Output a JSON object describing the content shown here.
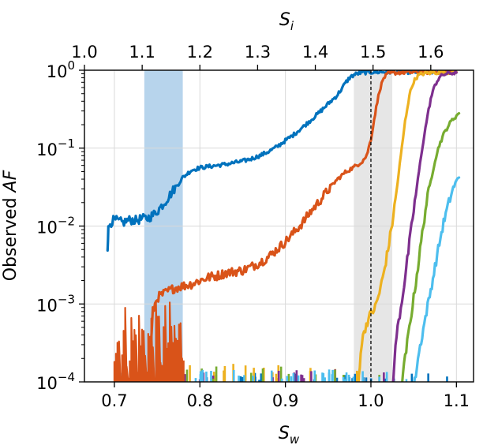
{
  "chart_data": {
    "type": "line",
    "xlabel": "S",
    "xlabel_sub": "w",
    "x2label": "S",
    "x2label_sub": "i",
    "ylabel_prefix": "Observed ",
    "ylabel_italic": "AF",
    "yscale": "log",
    "xlim": [
      0.665,
      1.12
    ],
    "ylim": [
      0.0001,
      1
    ],
    "x_ticks": [
      {
        "value": 0.7,
        "label": "0.7"
      },
      {
        "value": 0.8,
        "label": "0.8"
      },
      {
        "value": 0.9,
        "label": "0.9"
      },
      {
        "value": 1.0,
        "label": "1.0"
      },
      {
        "value": 1.1,
        "label": "1.1"
      }
    ],
    "top_ticks": [
      {
        "value": 0.665,
        "label": "1.0"
      },
      {
        "value": 0.7325,
        "label": "1.1"
      },
      {
        "value": 0.8,
        "label": "1.2"
      },
      {
        "value": 0.8675,
        "label": "1.3"
      },
      {
        "value": 0.935,
        "label": "1.4"
      },
      {
        "value": 1.0025,
        "label": "1.5"
      },
      {
        "value": 1.07,
        "label": "1.6"
      }
    ],
    "y_ticks": [
      {
        "value": 1,
        "base": "10",
        "exp": "0"
      },
      {
        "value": 0.1,
        "base": "10",
        "exp": "−1"
      },
      {
        "value": 0.01,
        "base": "10",
        "exp": "−2"
      },
      {
        "value": 0.001,
        "base": "10",
        "exp": "−3"
      },
      {
        "value": 0.0001,
        "base": "10",
        "exp": "−4"
      }
    ],
    "grid": true,
    "spans": [
      {
        "x0": 0.735,
        "x1": 0.78,
        "color": "#b7d4ec"
      },
      {
        "x0": 0.98,
        "x1": 1.025,
        "color": "#e6e6e6"
      }
    ],
    "vlines": [
      {
        "x": 1.0,
        "style": "dashed",
        "color": "#000000"
      }
    ],
    "series": [
      {
        "color": "#0072bd",
        "points": [
          [
            0.692,
            0.0055
          ],
          [
            0.693,
            0.009
          ],
          [
            0.695,
            0.011
          ],
          [
            0.7,
            0.012
          ],
          [
            0.705,
            0.0115
          ],
          [
            0.71,
            0.011
          ],
          [
            0.715,
            0.0118
          ],
          [
            0.72,
            0.012
          ],
          [
            0.725,
            0.0118
          ],
          [
            0.73,
            0.0122
          ],
          [
            0.735,
            0.0125
          ],
          [
            0.74,
            0.0128
          ],
          [
            0.745,
            0.0138
          ],
          [
            0.75,
            0.0155
          ],
          [
            0.755,
            0.018
          ],
          [
            0.76,
            0.021
          ],
          [
            0.765,
            0.025
          ],
          [
            0.77,
            0.03
          ],
          [
            0.775,
            0.035
          ],
          [
            0.78,
            0.042
          ],
          [
            0.79,
            0.052
          ],
          [
            0.8,
            0.056
          ],
          [
            0.81,
            0.058
          ],
          [
            0.82,
            0.06
          ],
          [
            0.83,
            0.062
          ],
          [
            0.84,
            0.065
          ],
          [
            0.85,
            0.068
          ],
          [
            0.86,
            0.073
          ],
          [
            0.87,
            0.08
          ],
          [
            0.88,
            0.09
          ],
          [
            0.89,
            0.104
          ],
          [
            0.9,
            0.125
          ],
          [
            0.91,
            0.15
          ],
          [
            0.92,
            0.185
          ],
          [
            0.93,
            0.23
          ],
          [
            0.94,
            0.29
          ],
          [
            0.95,
            0.37
          ],
          [
            0.96,
            0.47
          ],
          [
            0.965,
            0.56
          ],
          [
            0.97,
            0.68
          ],
          [
            0.975,
            0.8
          ],
          [
            0.98,
            0.87
          ],
          [
            0.985,
            0.91
          ],
          [
            0.99,
            0.93
          ],
          [
            1.0,
            0.945
          ],
          [
            1.02,
            0.95
          ],
          [
            1.04,
            0.95
          ],
          [
            1.06,
            0.95
          ],
          [
            1.08,
            0.95
          ],
          [
            1.1,
            0.95
          ]
        ]
      },
      {
        "color": "#d95319",
        "points": [
          [
            0.7,
            8e-05
          ],
          [
            0.74,
            8e-05
          ],
          [
            0.745,
            0.0008
          ],
          [
            0.75,
            0.0012
          ],
          [
            0.76,
            0.0014
          ],
          [
            0.77,
            0.0016
          ],
          [
            0.78,
            0.0017
          ],
          [
            0.79,
            0.0018
          ],
          [
            0.8,
            0.002
          ],
          [
            0.81,
            0.0022
          ],
          [
            0.82,
            0.0023
          ],
          [
            0.83,
            0.0025
          ],
          [
            0.84,
            0.0026
          ],
          [
            0.85,
            0.0027
          ],
          [
            0.86,
            0.003
          ],
          [
            0.87,
            0.0034
          ],
          [
            0.88,
            0.004
          ],
          [
            0.89,
            0.005
          ],
          [
            0.9,
            0.0063
          ],
          [
            0.91,
            0.0083
          ],
          [
            0.92,
            0.011
          ],
          [
            0.93,
            0.0155
          ],
          [
            0.94,
            0.021
          ],
          [
            0.95,
            0.029
          ],
          [
            0.96,
            0.039
          ],
          [
            0.97,
            0.049
          ],
          [
            0.98,
            0.057
          ],
          [
            0.985,
            0.062
          ],
          [
            0.99,
            0.068
          ],
          [
            0.995,
            0.08
          ],
          [
            1.0,
            0.13
          ],
          [
            1.005,
            0.28
          ],
          [
            1.01,
            0.55
          ],
          [
            1.015,
            0.8
          ],
          [
            1.02,
            0.9
          ],
          [
            1.03,
            0.93
          ],
          [
            1.04,
            0.94
          ],
          [
            1.06,
            0.945
          ],
          [
            1.08,
            0.95
          ],
          [
            1.1,
            0.95
          ]
        ]
      },
      {
        "color": "#edb120",
        "points": [
          [
            0.985,
            8e-05
          ],
          [
            0.988,
            0.00025
          ],
          [
            0.992,
            0.00045
          ],
          [
            0.996,
            0.0006
          ],
          [
            1.0,
            0.00075
          ],
          [
            1.005,
            0.0009
          ],
          [
            1.01,
            0.0014
          ],
          [
            1.015,
            0.0025
          ],
          [
            1.02,
            0.005
          ],
          [
            1.025,
            0.011
          ],
          [
            1.03,
            0.028
          ],
          [
            1.035,
            0.08
          ],
          [
            1.04,
            0.22
          ],
          [
            1.045,
            0.48
          ],
          [
            1.05,
            0.72
          ],
          [
            1.055,
            0.85
          ],
          [
            1.06,
            0.9
          ],
          [
            1.07,
            0.93
          ],
          [
            1.08,
            0.94
          ],
          [
            1.1,
            0.945
          ]
        ]
      },
      {
        "color": "#7e2f8e",
        "points": [
          [
            1.025,
            8e-05
          ],
          [
            1.03,
            0.0004
          ],
          [
            1.035,
            0.0009
          ],
          [
            1.04,
            0.0022
          ],
          [
            1.045,
            0.006
          ],
          [
            1.05,
            0.016
          ],
          [
            1.055,
            0.04
          ],
          [
            1.06,
            0.1
          ],
          [
            1.065,
            0.22
          ],
          [
            1.07,
            0.43
          ],
          [
            1.075,
            0.65
          ],
          [
            1.08,
            0.81
          ],
          [
            1.085,
            0.88
          ],
          [
            1.09,
            0.91
          ],
          [
            1.1,
            0.93
          ]
        ]
      },
      {
        "color": "#77ac30",
        "points": [
          [
            1.035,
            8e-05
          ],
          [
            1.04,
            0.0002
          ],
          [
            1.045,
            0.0005
          ],
          [
            1.05,
            0.0012
          ],
          [
            1.055,
            0.003
          ],
          [
            1.06,
            0.008
          ],
          [
            1.065,
            0.02
          ],
          [
            1.07,
            0.038
          ],
          [
            1.075,
            0.07
          ],
          [
            1.08,
            0.11
          ],
          [
            1.085,
            0.15
          ],
          [
            1.09,
            0.19
          ],
          [
            1.095,
            0.23
          ],
          [
            1.1,
            0.26
          ],
          [
            1.103,
            0.28
          ]
        ]
      },
      {
        "color": "#4dbeee",
        "points": [
          [
            1.05,
            8e-05
          ],
          [
            1.055,
            0.0002
          ],
          [
            1.06,
            0.0004
          ],
          [
            1.065,
            0.0008
          ],
          [
            1.07,
            0.0015
          ],
          [
            1.075,
            0.003
          ],
          [
            1.08,
            0.006
          ],
          [
            1.085,
            0.011
          ],
          [
            1.09,
            0.018
          ],
          [
            1.095,
            0.028
          ],
          [
            1.1,
            0.038
          ],
          [
            1.103,
            0.042
          ]
        ]
      }
    ]
  }
}
